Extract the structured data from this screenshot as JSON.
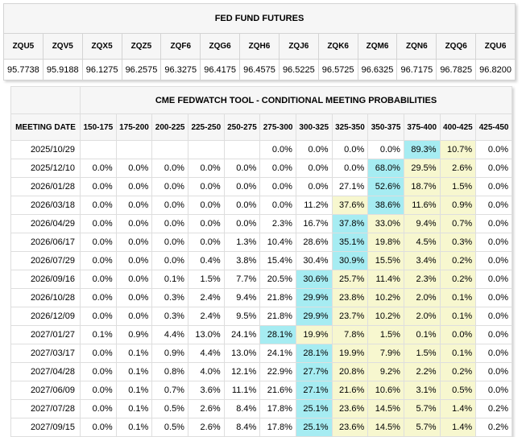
{
  "futures": {
    "title": "FED FUND FUTURES",
    "contracts": [
      {
        "code": "ZQU5",
        "price": "95.7738"
      },
      {
        "code": "ZQV5",
        "price": "95.9188"
      },
      {
        "code": "ZQX5",
        "price": "96.1275"
      },
      {
        "code": "ZQZ5",
        "price": "96.2575"
      },
      {
        "code": "ZQF6",
        "price": "96.3275"
      },
      {
        "code": "ZQG6",
        "price": "96.4175"
      },
      {
        "code": "ZQH6",
        "price": "96.4575"
      },
      {
        "code": "ZQJ6",
        "price": "96.5225"
      },
      {
        "code": "ZQK6",
        "price": "96.5725"
      },
      {
        "code": "ZQM6",
        "price": "96.6325"
      },
      {
        "code": "ZQN6",
        "price": "96.7175"
      },
      {
        "code": "ZQQ6",
        "price": "96.7825"
      },
      {
        "code": "ZQU6",
        "price": "96.8200"
      }
    ]
  },
  "probabilities": {
    "title": "CME FEDWATCH TOOL - CONDITIONAL MEETING PROBABILITIES",
    "date_header": "MEETING DATE",
    "ranges": [
      "150-175",
      "175-200",
      "200-225",
      "225-250",
      "250-275",
      "275-300",
      "300-325",
      "325-350",
      "350-375",
      "375-400",
      "400-425",
      "425-450"
    ],
    "highlight_colors": {
      "max": "#a6ecf2",
      "high": "#d7f5f7",
      "mid": "#f7f7cf"
    },
    "rows": [
      {
        "date": "2025/10/29",
        "values": [
          "",
          "",
          "",
          "",
          "",
          "0.0%",
          "0.0%",
          "0.0%",
          "0.0%",
          "89.3%",
          "10.7%",
          "0.0%"
        ],
        "hl": [
          "",
          "",
          "",
          "",
          "",
          "",
          "",
          "",
          "",
          "max",
          "mid",
          ""
        ]
      },
      {
        "date": "2025/12/10",
        "values": [
          "0.0%",
          "0.0%",
          "0.0%",
          "0.0%",
          "0.0%",
          "0.0%",
          "0.0%",
          "0.0%",
          "68.0%",
          "29.5%",
          "2.6%",
          "0.0%"
        ],
        "hl": [
          "",
          "",
          "",
          "",
          "",
          "",
          "",
          "",
          "max",
          "mid",
          "mid",
          ""
        ]
      },
      {
        "date": "2026/01/28",
        "values": [
          "0.0%",
          "0.0%",
          "0.0%",
          "0.0%",
          "0.0%",
          "0.0%",
          "0.0%",
          "27.1%",
          "52.6%",
          "18.7%",
          "1.5%",
          "0.0%"
        ],
        "hl": [
          "",
          "",
          "",
          "",
          "",
          "",
          "",
          "",
          "max",
          "mid",
          "mid",
          ""
        ]
      },
      {
        "date": "2026/03/18",
        "values": [
          "0.0%",
          "0.0%",
          "0.0%",
          "0.0%",
          "0.0%",
          "0.0%",
          "11.2%",
          "37.6%",
          "38.6%",
          "11.6%",
          "0.9%",
          "0.0%"
        ],
        "hl": [
          "",
          "",
          "",
          "",
          "",
          "",
          "",
          "mid",
          "max",
          "mid",
          "mid",
          ""
        ]
      },
      {
        "date": "2026/04/29",
        "values": [
          "0.0%",
          "0.0%",
          "0.0%",
          "0.0%",
          "0.0%",
          "2.3%",
          "16.7%",
          "37.8%",
          "33.0%",
          "9.4%",
          "0.7%",
          "0.0%"
        ],
        "hl": [
          "",
          "",
          "",
          "",
          "",
          "",
          "",
          "max",
          "mid",
          "mid",
          "mid",
          ""
        ]
      },
      {
        "date": "2026/06/17",
        "values": [
          "0.0%",
          "0.0%",
          "0.0%",
          "0.0%",
          "1.3%",
          "10.4%",
          "28.6%",
          "35.1%",
          "19.8%",
          "4.5%",
          "0.3%",
          "0.0%"
        ],
        "hl": [
          "",
          "",
          "",
          "",
          "",
          "",
          "",
          "max",
          "mid",
          "mid",
          "mid",
          ""
        ]
      },
      {
        "date": "2026/07/29",
        "values": [
          "0.0%",
          "0.0%",
          "0.0%",
          "0.4%",
          "3.8%",
          "15.4%",
          "30.4%",
          "30.9%",
          "15.5%",
          "3.4%",
          "0.2%",
          "0.0%"
        ],
        "hl": [
          "",
          "",
          "",
          "",
          "",
          "",
          "",
          "max",
          "mid",
          "mid",
          "mid",
          ""
        ]
      },
      {
        "date": "2026/09/16",
        "values": [
          "0.0%",
          "0.0%",
          "0.1%",
          "1.5%",
          "7.7%",
          "20.5%",
          "30.6%",
          "25.7%",
          "11.4%",
          "2.3%",
          "0.2%",
          "0.0%"
        ],
        "hl": [
          "",
          "",
          "",
          "",
          "",
          "",
          "max",
          "mid",
          "mid",
          "mid",
          "mid",
          ""
        ]
      },
      {
        "date": "2026/10/28",
        "values": [
          "0.0%",
          "0.0%",
          "0.3%",
          "2.4%",
          "9.4%",
          "21.8%",
          "29.9%",
          "23.8%",
          "10.2%",
          "2.0%",
          "0.1%",
          "0.0%"
        ],
        "hl": [
          "",
          "",
          "",
          "",
          "",
          "",
          "max",
          "mid",
          "mid",
          "mid",
          "mid",
          ""
        ]
      },
      {
        "date": "2026/12/09",
        "values": [
          "0.0%",
          "0.0%",
          "0.3%",
          "2.4%",
          "9.5%",
          "21.8%",
          "29.9%",
          "23.7%",
          "10.2%",
          "2.0%",
          "0.1%",
          "0.0%"
        ],
        "hl": [
          "",
          "",
          "",
          "",
          "",
          "",
          "max",
          "mid",
          "mid",
          "mid",
          "mid",
          ""
        ]
      },
      {
        "date": "2027/01/27",
        "values": [
          "0.1%",
          "0.9%",
          "4.4%",
          "13.0%",
          "24.1%",
          "28.1%",
          "19.9%",
          "7.8%",
          "1.5%",
          "0.1%",
          "0.0%",
          "0.0%"
        ],
        "hl": [
          "",
          "",
          "",
          "",
          "",
          "max",
          "mid",
          "mid",
          "mid",
          "mid",
          "mid",
          ""
        ]
      },
      {
        "date": "2027/03/17",
        "values": [
          "0.0%",
          "0.1%",
          "0.9%",
          "4.4%",
          "13.0%",
          "24.1%",
          "28.1%",
          "19.9%",
          "7.9%",
          "1.5%",
          "0.1%",
          "0.0%"
        ],
        "hl": [
          "",
          "",
          "",
          "",
          "",
          "",
          "max",
          "mid",
          "mid",
          "mid",
          "mid",
          ""
        ]
      },
      {
        "date": "2027/04/28",
        "values": [
          "0.0%",
          "0.1%",
          "0.8%",
          "4.0%",
          "12.1%",
          "22.9%",
          "27.7%",
          "20.8%",
          "9.2%",
          "2.2%",
          "0.2%",
          "0.0%"
        ],
        "hl": [
          "",
          "",
          "",
          "",
          "",
          "",
          "max",
          "mid",
          "mid",
          "mid",
          "mid",
          ""
        ]
      },
      {
        "date": "2027/06/09",
        "values": [
          "0.0%",
          "0.1%",
          "0.7%",
          "3.6%",
          "11.1%",
          "21.6%",
          "27.1%",
          "21.6%",
          "10.6%",
          "3.1%",
          "0.5%",
          "0.0%"
        ],
        "hl": [
          "",
          "",
          "",
          "",
          "",
          "",
          "max",
          "mid",
          "mid",
          "mid",
          "mid",
          ""
        ]
      },
      {
        "date": "2027/07/28",
        "values": [
          "0.0%",
          "0.1%",
          "0.5%",
          "2.6%",
          "8.4%",
          "17.8%",
          "25.1%",
          "23.6%",
          "14.5%",
          "5.7%",
          "1.4%",
          "0.2%"
        ],
        "hl": [
          "",
          "",
          "",
          "",
          "",
          "",
          "max",
          "mid",
          "mid",
          "mid",
          "mid",
          ""
        ]
      },
      {
        "date": "2027/09/15",
        "values": [
          "0.0%",
          "0.1%",
          "0.5%",
          "2.6%",
          "8.4%",
          "17.8%",
          "25.1%",
          "23.6%",
          "14.5%",
          "5.7%",
          "1.4%",
          "0.2%"
        ],
        "hl": [
          "",
          "",
          "",
          "",
          "",
          "",
          "max",
          "mid",
          "mid",
          "mid",
          "mid",
          ""
        ]
      }
    ]
  }
}
